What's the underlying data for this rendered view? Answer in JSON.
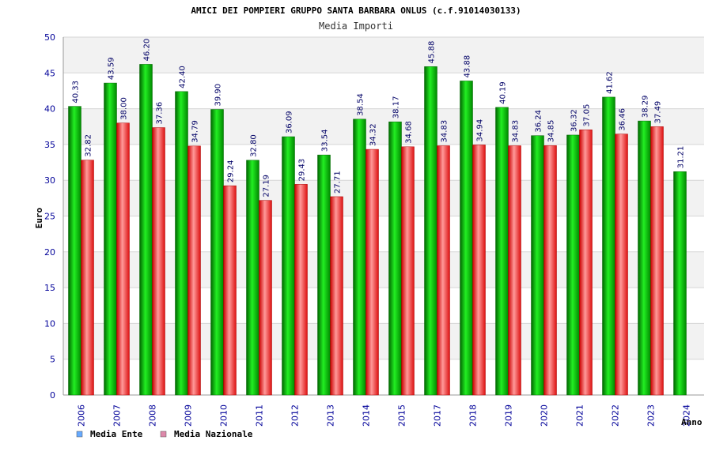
{
  "chart_data": {
    "type": "bar",
    "title": "AMICI DEI POMPIERI GRUPPO SANTA BARBARA ONLUS (c.f.91014030133)",
    "subtitle": "Media Importi",
    "xlabel": "Anno",
    "ylabel": "Euro",
    "ylim": [
      0,
      50
    ],
    "yticks": [
      "0",
      "5",
      "10",
      "15",
      "20",
      "25",
      "30",
      "35",
      "40",
      "45",
      "50"
    ],
    "grid": true,
    "legend_position": "bottom-left",
    "categories": [
      "2006",
      "2007",
      "2008",
      "2009",
      "2010",
      "2011",
      "2012",
      "2013",
      "2014",
      "2015",
      "2017",
      "2018",
      "2019",
      "2020",
      "2021",
      "2022",
      "2023",
      "2024"
    ],
    "series": [
      {
        "name": "Media Ente",
        "color": "#00aa00",
        "legend_color": "#66aaff",
        "values": [
          40.33,
          43.59,
          46.2,
          42.4,
          39.9,
          32.8,
          36.09,
          33.54,
          38.54,
          38.17,
          45.88,
          43.88,
          40.19,
          36.24,
          36.32,
          41.62,
          38.29,
          31.21
        ],
        "labels": [
          "40.33",
          "43.59",
          "46.20",
          "42.40",
          "39.90",
          "32.80",
          "36.09",
          "33.54",
          "38.54",
          "38.17",
          "45.88",
          "43.88",
          "40.19",
          "36.24",
          "36.32",
          "41.62",
          "38.29",
          "31.21"
        ]
      },
      {
        "name": "Media Nazionale",
        "color": "#ee2222",
        "legend_color": "#dd88aa",
        "values": [
          32.82,
          38.0,
          37.36,
          34.79,
          29.24,
          27.19,
          29.43,
          27.71,
          34.32,
          34.68,
          34.83,
          34.94,
          34.83,
          34.85,
          37.05,
          36.46,
          37.49,
          null
        ],
        "labels": [
          "32.82",
          "38.00",
          "37.36",
          "34.79",
          "29.24",
          "27.19",
          "29.43",
          "27.71",
          "34.32",
          "34.68",
          "34.83",
          "34.94",
          "34.83",
          "34.85",
          "37.05",
          "36.46",
          "37.49",
          ""
        ]
      }
    ]
  }
}
